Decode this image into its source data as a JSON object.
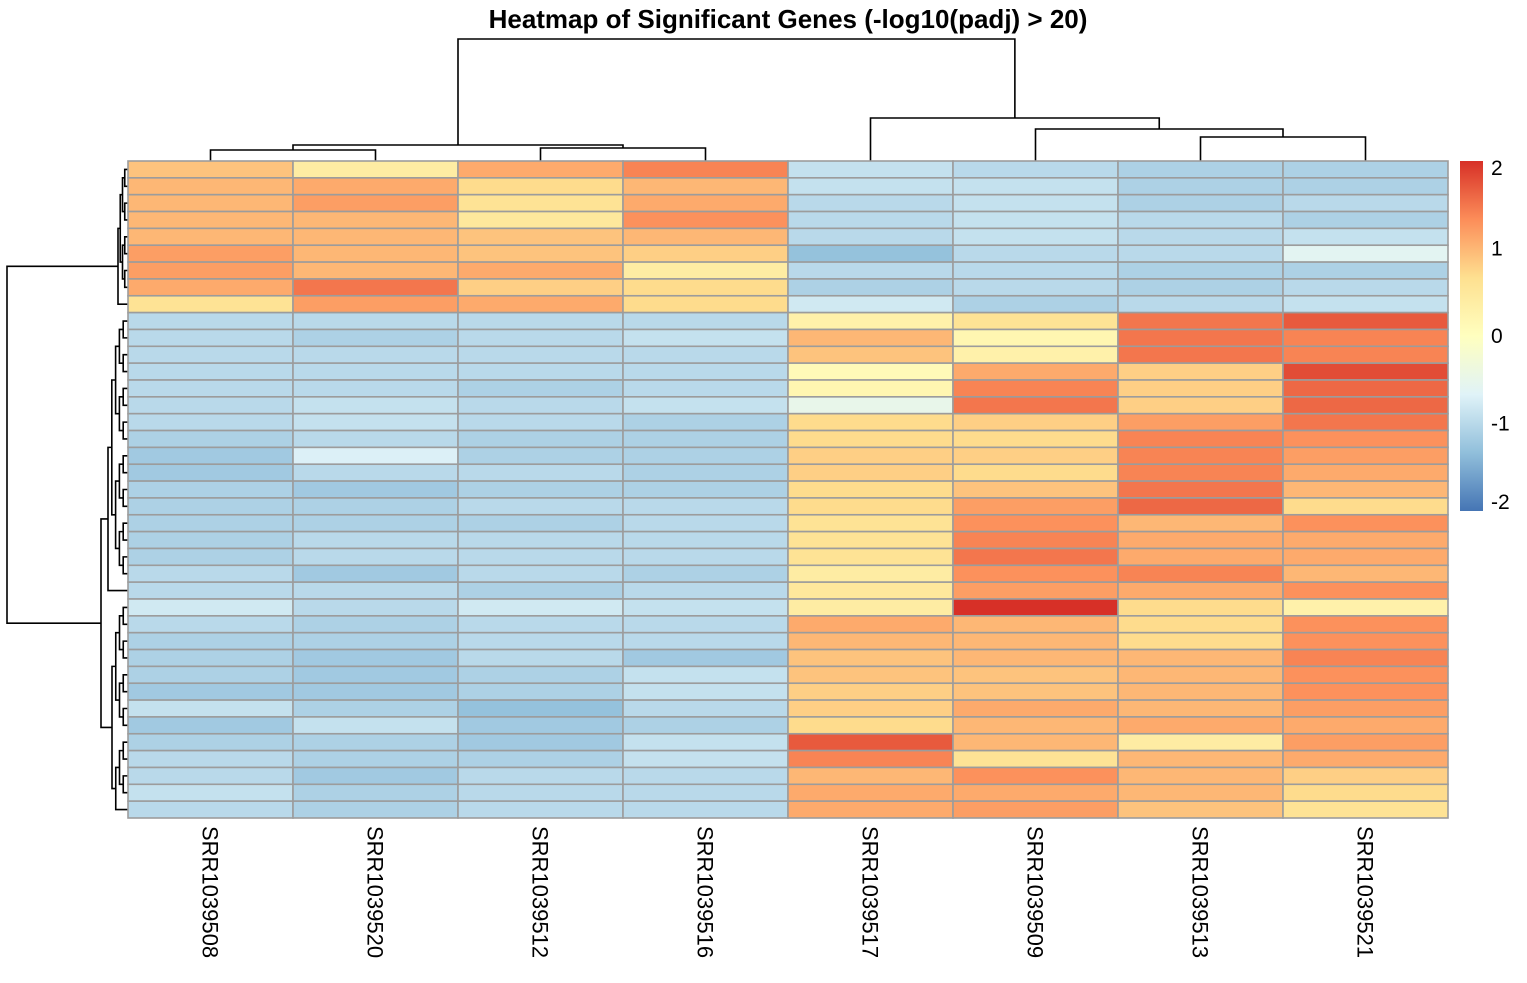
{
  "chart_data": {
    "type": "heatmap",
    "title": "Heatmap of Significant Genes (-log10(padj) > 20)",
    "columns": [
      "SRR1039508",
      "SRR1039520",
      "SRR1039512",
      "SRR1039516",
      "SRR1039517",
      "SRR1039509",
      "SRR1039513",
      "SRR1039521"
    ],
    "values": [
      [
        0.9,
        0.4,
        1.1,
        1.4,
        -0.9,
        -1.0,
        -1.1,
        -1.1
      ],
      [
        1.0,
        1.1,
        0.7,
        1.0,
        -0.9,
        -0.9,
        -1.1,
        -1.1
      ],
      [
        1.0,
        1.2,
        0.6,
        1.1,
        -1.0,
        -0.9,
        -1.1,
        -1.0
      ],
      [
        1.0,
        1.0,
        0.5,
        1.3,
        -1.0,
        -0.9,
        -1.0,
        -1.1
      ],
      [
        1.0,
        1.0,
        0.9,
        1.0,
        -1.0,
        -0.9,
        -1.0,
        -0.9
      ],
      [
        1.2,
        1.0,
        0.9,
        0.8,
        -1.3,
        -1.0,
        -1.0,
        -0.6
      ],
      [
        1.2,
        1.0,
        1.1,
        0.4,
        -1.0,
        -1.0,
        -1.1,
        -1.1
      ],
      [
        1.1,
        1.5,
        0.8,
        0.7,
        -1.1,
        -1.0,
        -1.1,
        -1.0
      ],
      [
        0.6,
        1.2,
        1.1,
        0.7,
        -0.8,
        -1.1,
        -1.0,
        -0.9
      ],
      [
        -1.0,
        -1.0,
        -1.0,
        -1.0,
        0.3,
        0.6,
        1.5,
        1.7
      ],
      [
        -1.0,
        -1.1,
        -1.0,
        -0.9,
        1.0,
        0.2,
        1.5,
        1.4
      ],
      [
        -1.0,
        -1.0,
        -1.0,
        -1.0,
        0.9,
        0.3,
        1.5,
        1.4
      ],
      [
        -1.0,
        -1.0,
        -1.0,
        -1.0,
        0.1,
        1.1,
        0.8,
        1.8
      ],
      [
        -1.0,
        -1.0,
        -1.1,
        -1.0,
        0.2,
        1.4,
        0.8,
        1.6
      ],
      [
        -1.0,
        -0.9,
        -1.0,
        -0.9,
        -0.5,
        1.5,
        0.8,
        1.6
      ],
      [
        -1.0,
        -0.9,
        -1.0,
        -1.1,
        0.7,
        0.8,
        1.2,
        1.5
      ],
      [
        -1.1,
        -1.0,
        -1.1,
        -1.1,
        0.7,
        0.7,
        1.4,
        1.3
      ],
      [
        -1.2,
        -0.7,
        -1.1,
        -1.1,
        0.8,
        0.8,
        1.4,
        1.2
      ],
      [
        -1.2,
        -1.0,
        -1.0,
        -1.1,
        0.8,
        0.7,
        1.4,
        1.1
      ],
      [
        -1.1,
        -1.2,
        -1.1,
        -1.1,
        0.7,
        0.9,
        1.5,
        1.0
      ],
      [
        -1.1,
        -1.1,
        -1.0,
        -1.0,
        0.7,
        1.2,
        1.6,
        0.7
      ],
      [
        -1.1,
        -1.1,
        -1.1,
        -1.0,
        0.6,
        1.3,
        1.0,
        1.3
      ],
      [
        -1.1,
        -1.0,
        -1.0,
        -1.0,
        0.6,
        1.4,
        1.1,
        1.1
      ],
      [
        -1.1,
        -1.0,
        -1.0,
        -1.0,
        0.6,
        1.5,
        1.1,
        1.1
      ],
      [
        -1.0,
        -1.2,
        -1.0,
        -1.1,
        0.4,
        1.3,
        1.4,
        1.0
      ],
      [
        -1.0,
        -1.0,
        -1.1,
        -1.0,
        0.5,
        1.2,
        1.1,
        1.3
      ],
      [
        -0.8,
        -1.0,
        -0.8,
        -0.9,
        0.4,
        2.0,
        0.7,
        0.3
      ],
      [
        -1.0,
        -1.1,
        -1.0,
        -1.0,
        1.1,
        1.0,
        0.7,
        1.3
      ],
      [
        -1.1,
        -1.1,
        -1.0,
        -1.0,
        1.0,
        1.0,
        0.7,
        1.3
      ],
      [
        -1.1,
        -1.2,
        -1.0,
        -1.2,
        0.9,
        1.0,
        1.0,
        1.4
      ],
      [
        -1.1,
        -1.2,
        -1.1,
        -0.9,
        0.9,
        0.9,
        1.0,
        1.3
      ],
      [
        -1.2,
        -1.2,
        -1.1,
        -0.9,
        0.8,
        0.9,
        1.0,
        1.3
      ],
      [
        -0.9,
        -1.1,
        -1.3,
        -1.0,
        0.8,
        1.1,
        1.0,
        1.2
      ],
      [
        -1.2,
        -0.9,
        -1.2,
        -1.1,
        0.7,
        1.0,
        1.1,
        1.1
      ],
      [
        -1.1,
        -1.1,
        -1.2,
        -0.9,
        1.7,
        1.0,
        0.4,
        1.2
      ],
      [
        -1.0,
        -1.1,
        -1.1,
        -0.9,
        1.4,
        0.6,
        1.0,
        1.1
      ],
      [
        -1.0,
        -1.2,
        -1.0,
        -1.0,
        1.0,
        1.3,
        1.0,
        0.8
      ],
      [
        -0.9,
        -1.1,
        -1.0,
        -1.0,
        1.1,
        1.1,
        1.0,
        0.7
      ],
      [
        -1.0,
        -1.1,
        -1.0,
        -1.0,
        1.1,
        1.2,
        0.9,
        0.6
      ]
    ],
    "color_scale": {
      "min": -2,
      "max": 2,
      "stops": [
        "#4575B4",
        "#91BFDB",
        "#E0F3F8",
        "#FFFFBF",
        "#FEE090",
        "#FC8D59",
        "#D73027"
      ]
    },
    "legend_ticks": [
      "2",
      "1",
      "0",
      "-1",
      "-2"
    ],
    "legend_position": "right",
    "column_dendrogram": true,
    "row_dendrogram": true
  }
}
